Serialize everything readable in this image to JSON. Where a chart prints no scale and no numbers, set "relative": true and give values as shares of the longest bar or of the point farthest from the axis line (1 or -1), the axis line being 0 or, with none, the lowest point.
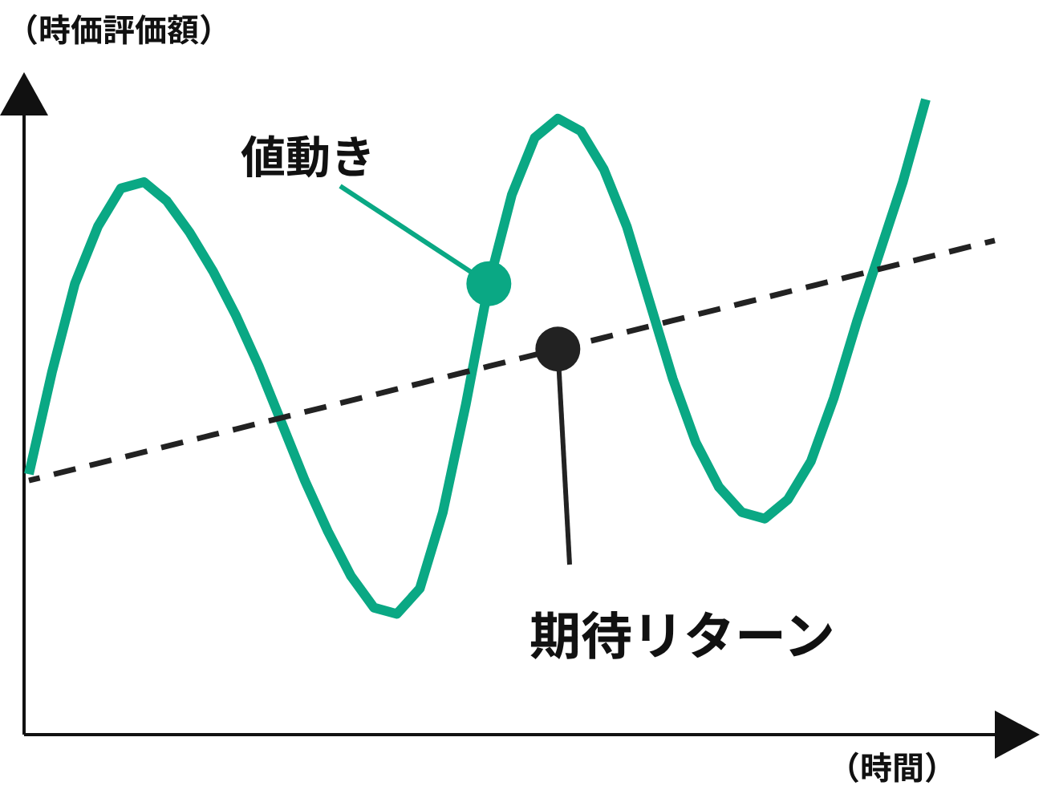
{
  "chart_data": {
    "type": "line",
    "relative": true,
    "xlabel": "（時間）",
    "ylabel": "（時価評価額）",
    "categories": [
      null,
      null,
      null,
      null,
      null,
      null,
      null,
      null,
      null,
      null,
      null,
      null,
      null,
      null,
      null,
      null,
      null,
      null,
      null,
      null,
      null,
      null,
      null,
      null,
      null,
      null,
      null,
      null,
      null,
      null,
      null,
      null,
      null,
      null,
      null,
      null,
      null,
      null,
      null,
      null,
      null,
      null,
      null
    ],
    "series": [
      {
        "color": "#0aa884",
        "line_style": "solid",
        "values": [
          0.41,
          0.57,
          0.71,
          0.8,
          0.86,
          0.87,
          0.84,
          0.79,
          0.73,
          0.66,
          0.58,
          0.49,
          0.4,
          0.32,
          0.25,
          0.2,
          0.19,
          0.23,
          0.35,
          0.52,
          0.71,
          0.85,
          0.94,
          0.97,
          0.95,
          0.89,
          0.8,
          0.68,
          0.56,
          0.46,
          0.39,
          0.35,
          0.34,
          0.37,
          0.43,
          0.53,
          0.65,
          0.76,
          0.87,
          1.0,
          null,
          null,
          null
        ]
      },
      {
        "color": "#222222",
        "line_style": "dashed",
        "values": [
          0.4,
          0.409,
          0.418,
          0.427,
          0.436,
          0.445,
          0.454,
          0.463,
          0.472,
          0.481,
          0.49,
          0.499,
          0.508,
          0.517,
          0.526,
          0.535,
          0.544,
          0.553,
          0.562,
          0.571,
          0.58,
          0.589,
          0.598,
          0.607,
          0.616,
          0.625,
          0.634,
          0.643,
          0.652,
          0.661,
          0.67,
          0.679,
          0.688,
          0.697,
          0.706,
          0.715,
          0.724,
          0.733,
          0.742,
          0.751,
          0.76,
          0.769,
          0.778
        ]
      }
    ],
    "annotations": [
      "値動き",
      "期待リターン"
    ]
  }
}
